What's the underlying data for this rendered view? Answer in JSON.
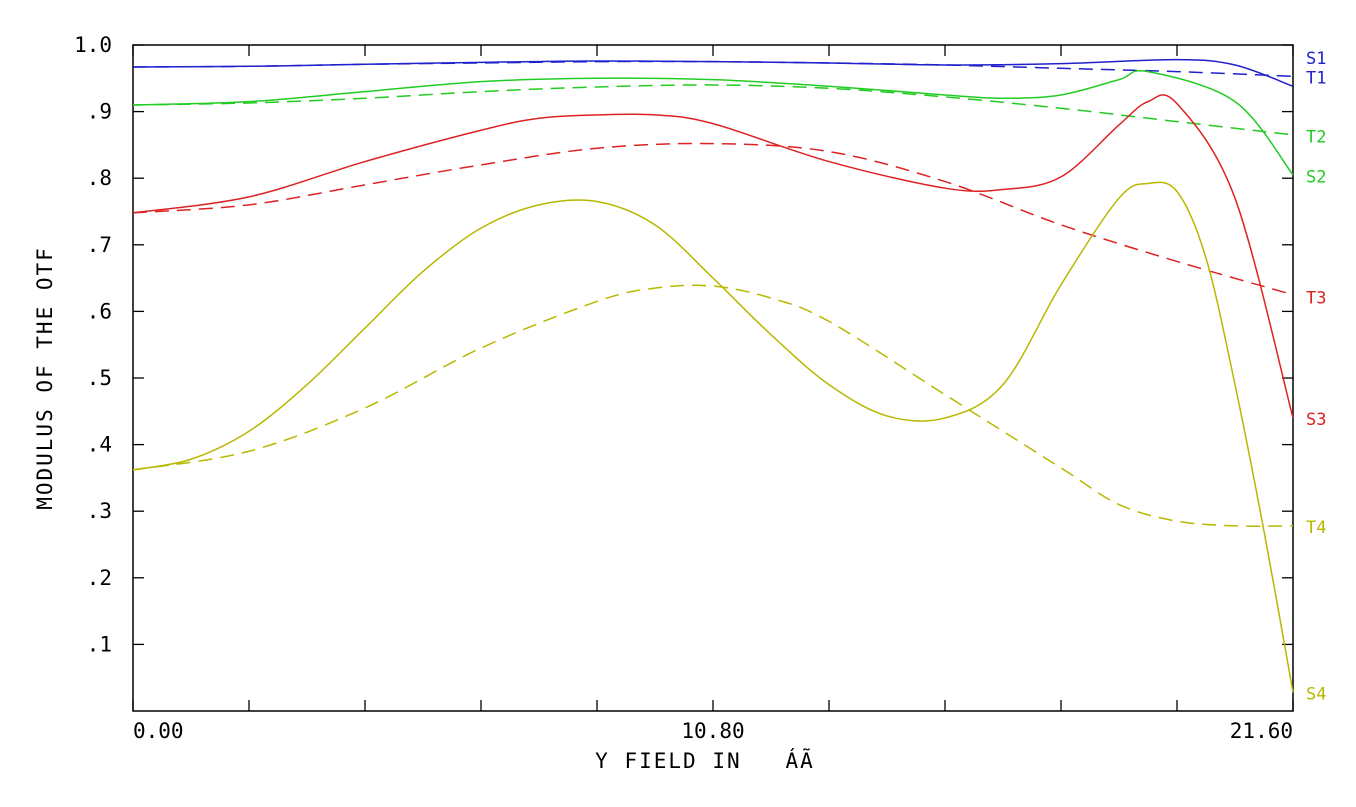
{
  "chart_data": {
    "type": "line",
    "title": "",
    "xlabel": "Y FIELD IN   ÁÃ",
    "ylabel": "MODULUS OF THE OTF",
    "xlim": [
      0,
      21.6
    ],
    "ylim": [
      0,
      1.0
    ],
    "grid": false,
    "x_tick_labels": [
      {
        "value": 0,
        "label": "0.00"
      },
      {
        "value": 10.8,
        "label": "10.80"
      },
      {
        "value": 21.6,
        "label": "21.60"
      }
    ],
    "x_minor_ticks": [
      2.16,
      4.32,
      6.48,
      8.64,
      12.96,
      15.12,
      17.28,
      19.44
    ],
    "y_tick_labels": [
      {
        "value": 0.1,
        "label": ".1"
      },
      {
        "value": 0.2,
        "label": ".2"
      },
      {
        "value": 0.3,
        "label": ".3"
      },
      {
        "value": 0.4,
        "label": ".4"
      },
      {
        "value": 0.5,
        "label": ".5"
      },
      {
        "value": 0.6,
        "label": ".6"
      },
      {
        "value": 0.7,
        "label": ".7"
      },
      {
        "value": 0.8,
        "label": ".8"
      },
      {
        "value": 0.9,
        "label": ".9"
      },
      {
        "value": 1.0,
        "label": "1.0"
      }
    ],
    "series": [
      {
        "name": "S1",
        "color": "#2020cc",
        "dash": false,
        "x": [
          0,
          2.16,
          4.32,
          6.48,
          8.64,
          10.8,
          12.96,
          15.12,
          17.28,
          19.44,
          20.52,
          21.6
        ],
        "y": [
          0.967,
          0.968,
          0.971,
          0.974,
          0.976,
          0.975,
          0.973,
          0.97,
          0.972,
          0.978,
          0.97,
          0.938
        ]
      },
      {
        "name": "T1",
        "color": "#2020cc",
        "dash": true,
        "x": [
          0,
          2.16,
          4.32,
          6.48,
          8.64,
          10.8,
          12.96,
          15.12,
          17.28,
          19.44,
          21.6
        ],
        "y": [
          0.967,
          0.968,
          0.971,
          0.973,
          0.975,
          0.975,
          0.973,
          0.97,
          0.965,
          0.96,
          0.953
        ]
      },
      {
        "name": "S2",
        "color": "#22cc22",
        "dash": false,
        "x": [
          0,
          2.16,
          4.32,
          6.48,
          8.64,
          10.8,
          12.96,
          15.12,
          16.2,
          17.28,
          18.36,
          18.9,
          20.52,
          21.6
        ],
        "y": [
          0.91,
          0.915,
          0.93,
          0.945,
          0.95,
          0.948,
          0.938,
          0.925,
          0.92,
          0.925,
          0.948,
          0.96,
          0.915,
          0.805
        ]
      },
      {
        "name": "T2",
        "color": "#22cc22",
        "dash": true,
        "x": [
          0,
          2.16,
          4.32,
          6.48,
          8.64,
          10.8,
          12.96,
          15.12,
          17.28,
          19.44,
          21.6
        ],
        "y": [
          0.91,
          0.913,
          0.92,
          0.93,
          0.937,
          0.94,
          0.935,
          0.922,
          0.905,
          0.885,
          0.865
        ]
      },
      {
        "name": "S3",
        "color": "#dd2222",
        "dash": false,
        "x": [
          0,
          2.16,
          4.32,
          6.48,
          7.56,
          8.64,
          9.72,
          10.8,
          12.96,
          15.12,
          16.2,
          17.28,
          18.36,
          18.9,
          19.44,
          20.52,
          21.6
        ],
        "y": [
          0.748,
          0.772,
          0.825,
          0.872,
          0.89,
          0.895,
          0.895,
          0.882,
          0.825,
          0.785,
          0.783,
          0.802,
          0.88,
          0.915,
          0.912,
          0.77,
          0.44
        ]
      },
      {
        "name": "T3",
        "color": "#dd2222",
        "dash": true,
        "x": [
          0,
          2.16,
          4.32,
          6.48,
          8.64,
          10.8,
          12.96,
          15.12,
          17.28,
          19.44,
          21.6
        ],
        "y": [
          0.748,
          0.76,
          0.79,
          0.82,
          0.845,
          0.852,
          0.84,
          0.795,
          0.73,
          0.675,
          0.625
        ]
      },
      {
        "name": "S4",
        "color": "#b8b800",
        "dash": false,
        "x": [
          0,
          1.08,
          2.16,
          3.24,
          4.32,
          5.4,
          6.48,
          7.56,
          8.64,
          9.72,
          10.8,
          11.88,
          12.96,
          14.04,
          15.12,
          16.2,
          17.28,
          18.36,
          18.9,
          19.44,
          19.98,
          20.52,
          21.06,
          21.6
        ],
        "y": [
          0.362,
          0.378,
          0.42,
          0.49,
          0.575,
          0.66,
          0.725,
          0.76,
          0.765,
          0.73,
          0.65,
          0.565,
          0.49,
          0.443,
          0.44,
          0.49,
          0.64,
          0.77,
          0.792,
          0.78,
          0.68,
          0.49,
          0.27,
          0.028
        ]
      },
      {
        "name": "T4",
        "color": "#b8b800",
        "dash": true,
        "x": [
          0,
          2.16,
          4.32,
          6.48,
          8.64,
          9.72,
          10.8,
          11.88,
          12.96,
          15.12,
          17.28,
          18.36,
          19.44,
          20.52,
          21.6
        ],
        "y": [
          0.362,
          0.39,
          0.455,
          0.545,
          0.615,
          0.635,
          0.638,
          0.62,
          0.585,
          0.475,
          0.365,
          0.31,
          0.285,
          0.278,
          0.278
        ]
      }
    ],
    "legend": {
      "placement": "right-edge",
      "entries": [
        {
          "label": "S1",
          "color": "#2020cc",
          "value": 0.982
        },
        {
          "label": "T1",
          "color": "#2020cc",
          "value": 0.953
        },
        {
          "label": "T2",
          "color": "#22cc22",
          "value": 0.864
        },
        {
          "label": "S2",
          "color": "#22cc22",
          "value": 0.804
        },
        {
          "label": "T3",
          "color": "#dd2222",
          "value": 0.622
        },
        {
          "label": "S3",
          "color": "#dd2222",
          "value": 0.44
        },
        {
          "label": "T4",
          "color": "#b8b800",
          "value": 0.278
        },
        {
          "label": "S4",
          "color": "#b8b800",
          "value": 0.028
        }
      ]
    }
  }
}
